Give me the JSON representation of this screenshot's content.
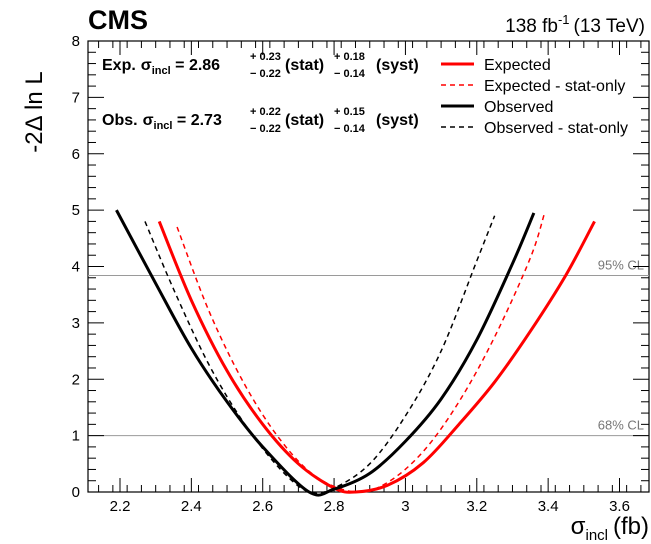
{
  "header": {
    "experiment": "CMS",
    "lumi_value": "138 fb",
    "lumi_exp": "-1",
    "lumi_energy": "(13 TeV)"
  },
  "annotations": {
    "exp": {
      "prefix": "Exp.",
      "sigma": "σ",
      "sub": "incl",
      "eq": " = 2.86",
      "stat_up": "+ 0.23",
      "stat_dn": "− 0.22",
      "stat_label": "(stat)",
      "syst_up": "+ 0.18",
      "syst_dn": "− 0.14",
      "syst_label": "(syst)"
    },
    "obs": {
      "prefix": "Obs.",
      "sigma": "σ",
      "sub": "incl",
      "eq": " = 2.73",
      "stat_up": "+ 0.22",
      "stat_dn": "− 0.22",
      "stat_label": "(stat)",
      "syst_up": "+ 0.15",
      "syst_dn": "− 0.14",
      "syst_label": "(syst)"
    }
  },
  "chart_data": {
    "type": "line",
    "title": "",
    "xlabel": "σ",
    "xlabel_sub": "incl",
    "xlabel_unit": "(fb)",
    "ylabel": "-2Δ ln L",
    "xlim": [
      2.1,
      3.7
    ],
    "ylim": [
      0,
      8
    ],
    "x_ticks": [
      2.2,
      2.4,
      2.6,
      2.8,
      3.0,
      3.2,
      3.4,
      3.6
    ],
    "x_tick_labels": [
      "2.2",
      "2.4",
      "2.6",
      "2.8",
      "3",
      "3.2",
      "3.4",
      "3.6"
    ],
    "y_ticks": [
      0,
      1,
      2,
      3,
      4,
      5,
      6,
      7,
      8
    ],
    "y_tick_labels": [
      "0",
      "1",
      "2",
      "3",
      "4",
      "5",
      "6",
      "7",
      "8"
    ],
    "reference_lines": [
      {
        "label": "68% CL",
        "y": 1.0
      },
      {
        "label": "95% CL",
        "y": 3.84
      }
    ],
    "legend_position": "top-right",
    "series": [
      {
        "name": "Expected",
        "color": "#ff0000",
        "dash": false,
        "width": 3,
        "x": [
          2.31,
          2.4,
          2.5,
          2.6,
          2.7,
          2.8,
          2.86,
          2.95,
          3.05,
          3.15,
          3.25,
          3.35,
          3.45,
          3.53
        ],
        "y": [
          4.8,
          3.4,
          2.15,
          1.2,
          0.5,
          0.07,
          0.0,
          0.12,
          0.52,
          1.2,
          1.95,
          2.85,
          3.85,
          4.8
        ]
      },
      {
        "name": "Expected - stat-only",
        "color": "#ff0000",
        "dash": true,
        "width": 1.5,
        "x": [
          2.36,
          2.45,
          2.55,
          2.65,
          2.75,
          2.86,
          2.95,
          3.05,
          3.15,
          3.25,
          3.35,
          3.39
        ],
        "y": [
          4.7,
          3.2,
          1.9,
          0.92,
          0.27,
          0.0,
          0.17,
          0.72,
          1.6,
          2.75,
          4.15,
          4.95
        ]
      },
      {
        "name": "Observed",
        "color": "#000000",
        "dash": false,
        "width": 3,
        "x": [
          2.19,
          2.3,
          2.4,
          2.5,
          2.6,
          2.73,
          2.8,
          2.9,
          3.0,
          3.1,
          3.2,
          3.3,
          3.36
        ],
        "y": [
          5.0,
          3.7,
          2.55,
          1.6,
          0.8,
          0.0,
          0.05,
          0.33,
          0.9,
          1.65,
          2.7,
          4.05,
          4.95
        ]
      },
      {
        "name": "Observed - stat-only",
        "color": "#000000",
        "dash": true,
        "width": 1.5,
        "x": [
          2.27,
          2.35,
          2.45,
          2.55,
          2.65,
          2.73,
          2.8,
          2.9,
          3.0,
          3.1,
          3.2,
          3.25
        ],
        "y": [
          4.8,
          3.6,
          2.25,
          1.2,
          0.4,
          0.0,
          0.07,
          0.5,
          1.35,
          2.5,
          4.1,
          4.9
        ]
      }
    ]
  }
}
